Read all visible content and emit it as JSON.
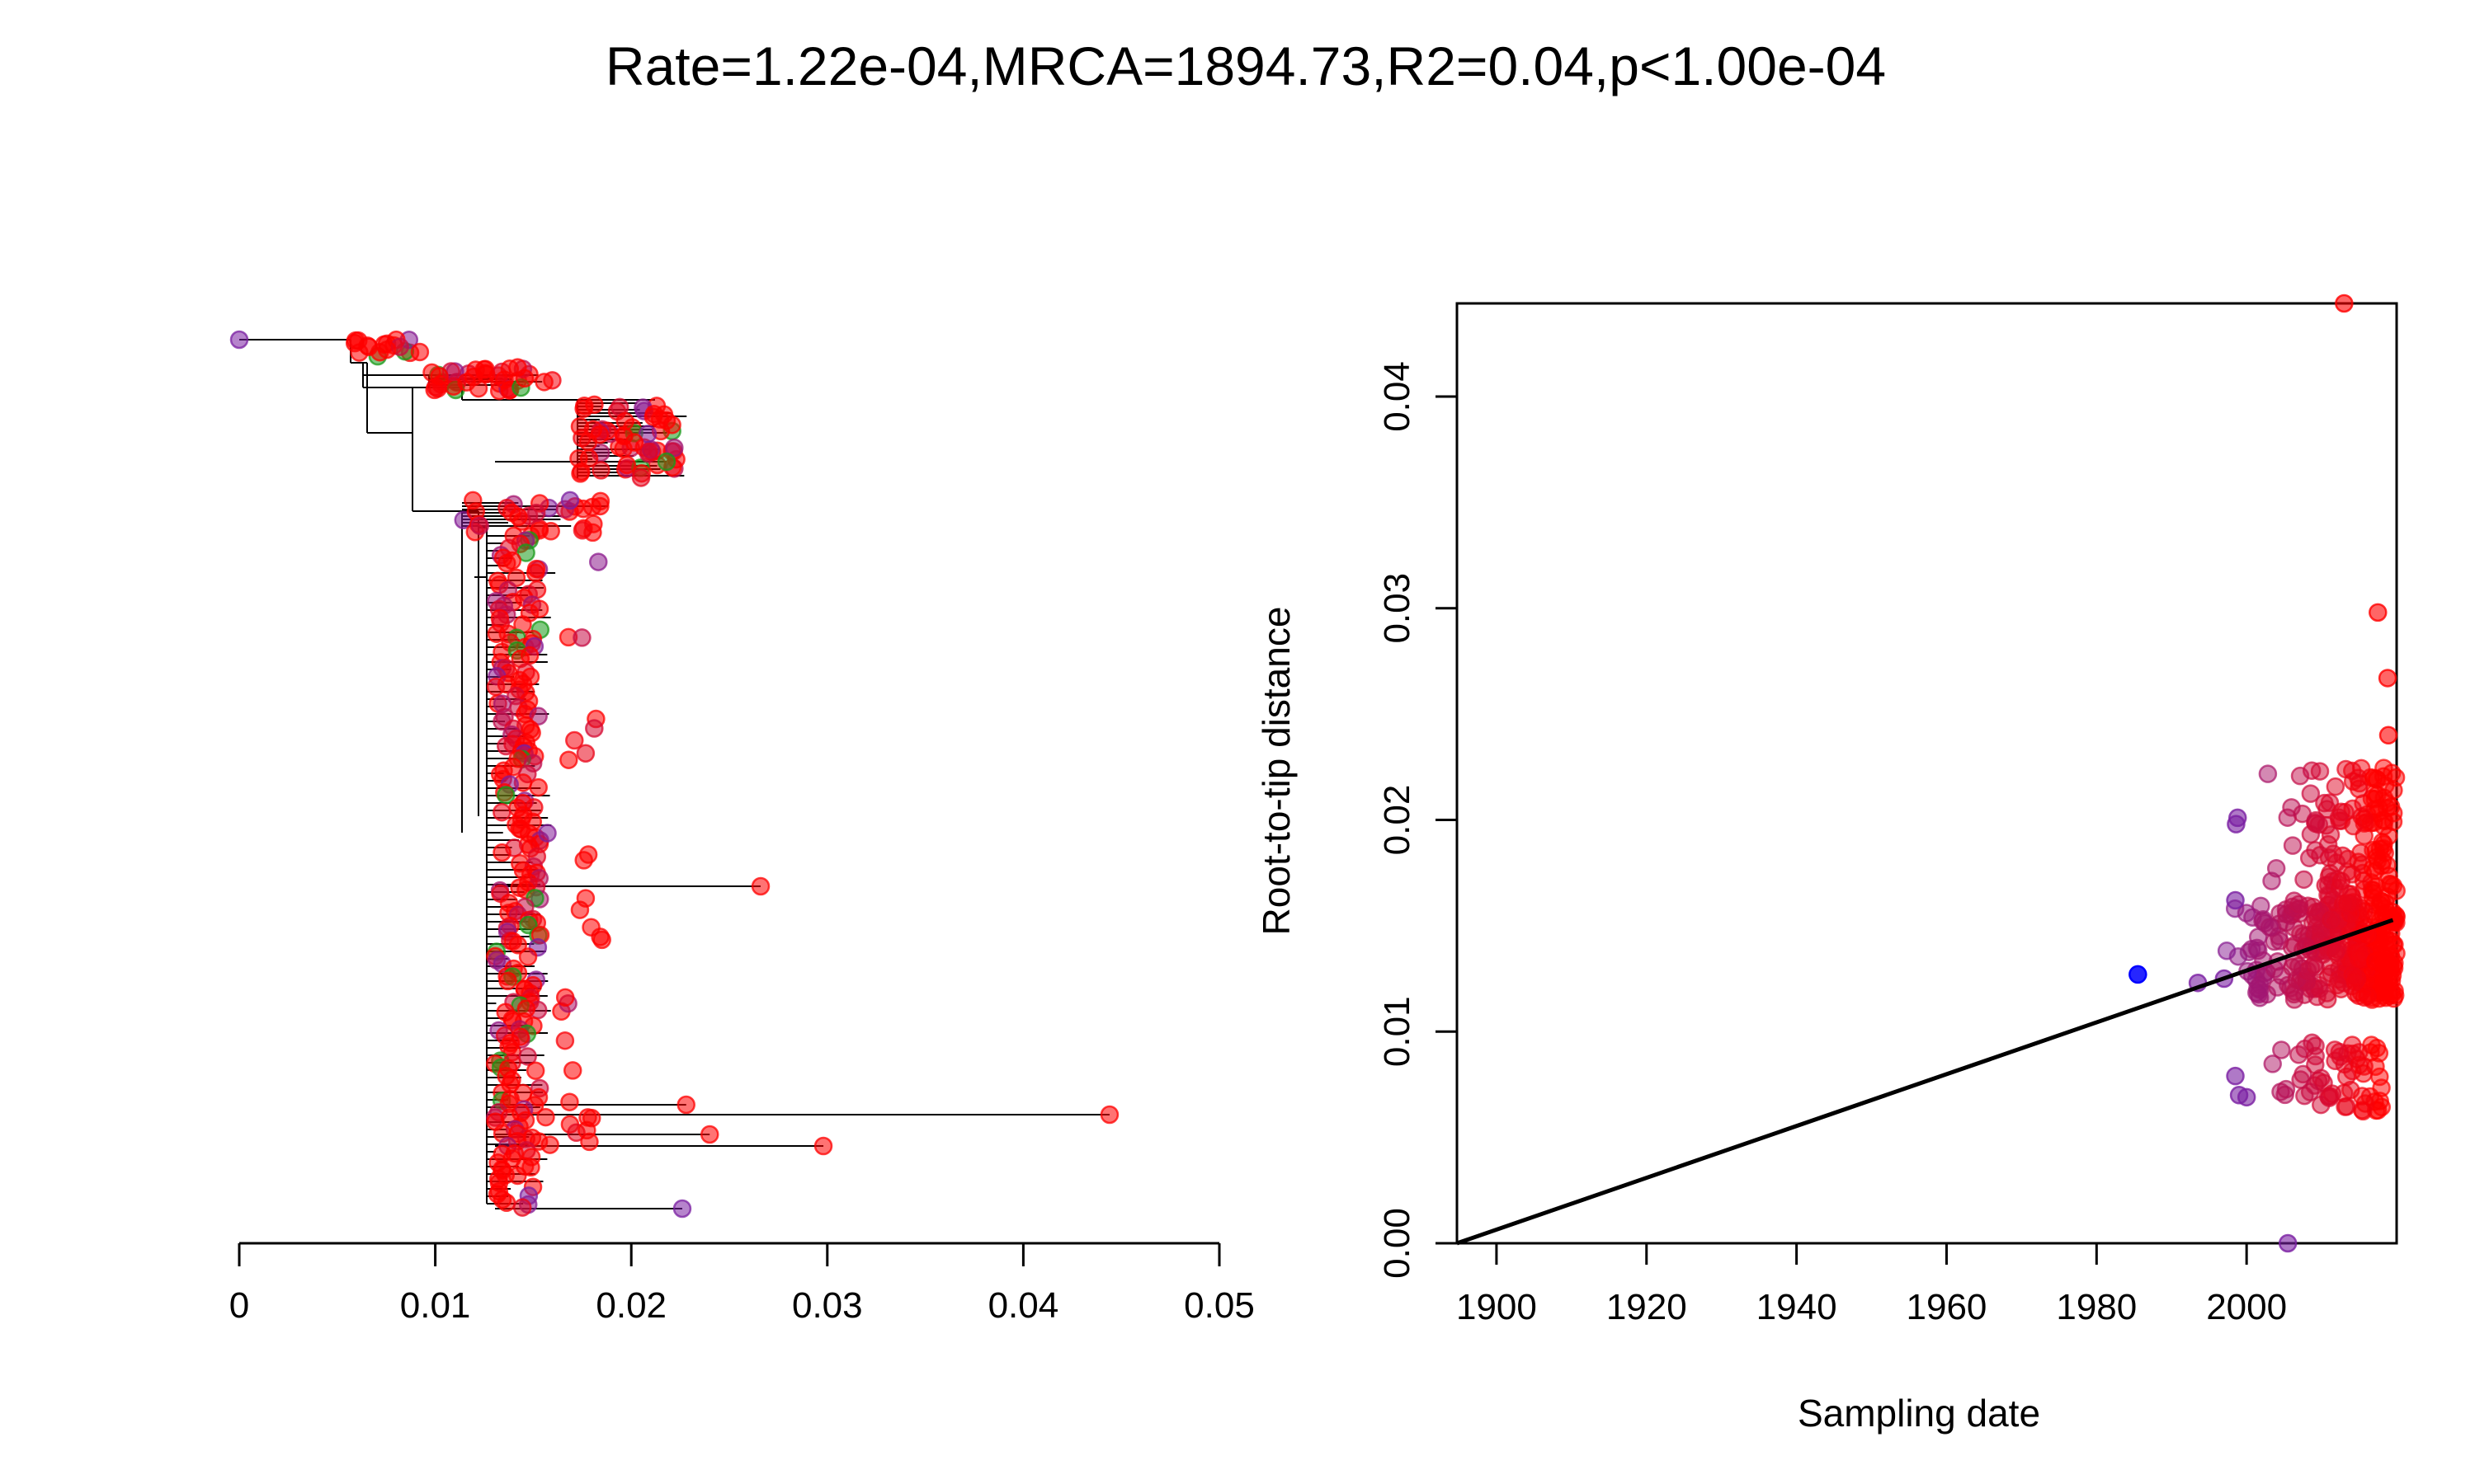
{
  "title": "Rate=1.22e-04,MRCA=1894.73,R2=0.04,p<1.00e-04",
  "colors": {
    "red": "#ff0000",
    "purple": "#7a1fa2",
    "green": "#1a9a1a",
    "blue": "#0000ff",
    "line": "#000000"
  },
  "chart_data": [
    {
      "type": "tree",
      "xticks": [
        0,
        0.01,
        0.02,
        0.03,
        0.04,
        0.05
      ],
      "xtick_labels": [
        "0",
        "0.01",
        "0.02",
        "0.03",
        "0.04",
        "0.05"
      ],
      "xlim": [
        0,
        0.05
      ],
      "notable_tips": [
        {
          "x": 0.0,
          "color": "purple"
        },
        {
          "x": 0.0444,
          "color": "red"
        },
        {
          "x": 0.0298,
          "color": "red"
        },
        {
          "x": 0.0266,
          "color": "red"
        },
        {
          "x": 0.024,
          "color": "red"
        },
        {
          "x": 0.0226,
          "color": "purple"
        },
        {
          "x": 0.0228,
          "color": "red"
        },
        {
          "x": 0.0218,
          "color": "green"
        }
      ]
    },
    {
      "type": "scatter",
      "xlabel": "Sampling date",
      "ylabel": "Root-to-tip distance",
      "xlim": [
        1894.73,
        2020
      ],
      "ylim": [
        0,
        0.0444
      ],
      "xticks": [
        1900,
        1920,
        1940,
        1960,
        1980,
        2000
      ],
      "yticks": [
        0,
        0.01,
        0.02,
        0.03,
        0.04
      ],
      "ytick_labels": [
        "0.00",
        "0.01",
        "0.02",
        "0.03",
        "0.04"
      ],
      "regression": {
        "x": [
          1894.73,
          2019.5
        ],
        "y": [
          0,
          0.01527
        ]
      },
      "points": [
        {
          "x": 1985.5,
          "y": 0.0127,
          "color": "blue"
        },
        {
          "x": 2013.0,
          "y": 0.0444,
          "color": "red"
        },
        {
          "x": 2005.5,
          "y": 0.0,
          "color": "purple"
        },
        {
          "x": 2017.5,
          "y": 0.0298,
          "color": "red"
        },
        {
          "x": 2018.8,
          "y": 0.0267,
          "color": "red"
        },
        {
          "x": 2018.9,
          "y": 0.024,
          "color": "red"
        },
        {
          "x": 1993.5,
          "y": 0.0123,
          "color": "purple"
        },
        {
          "x": 1997.0,
          "y": 0.0125,
          "color": "purple"
        },
        {
          "x": 1998.8,
          "y": 0.0201,
          "color": "purple"
        },
        {
          "x": 1998.6,
          "y": 0.0198,
          "color": "purple"
        },
        {
          "x": 1998.5,
          "y": 0.0162,
          "color": "purple"
        },
        {
          "x": 1999.0,
          "y": 0.007,
          "color": "purple"
        },
        {
          "x": 1998.5,
          "y": 0.0079,
          "color": "purple"
        },
        {
          "x": 2000.0,
          "y": 0.0069,
          "color": "purple"
        }
      ],
      "clusters": [
        {
          "x_range": [
            1995,
            2020
          ],
          "y_range": [
            0.0115,
            0.016
          ],
          "n": 320
        },
        {
          "x_range": [
            2002,
            2020
          ],
          "y_range": [
            0.016,
            0.0225
          ],
          "n": 140
        },
        {
          "x_range": [
            2001,
            2018
          ],
          "y_range": [
            0.0062,
            0.0095
          ],
          "n": 60
        }
      ]
    }
  ]
}
